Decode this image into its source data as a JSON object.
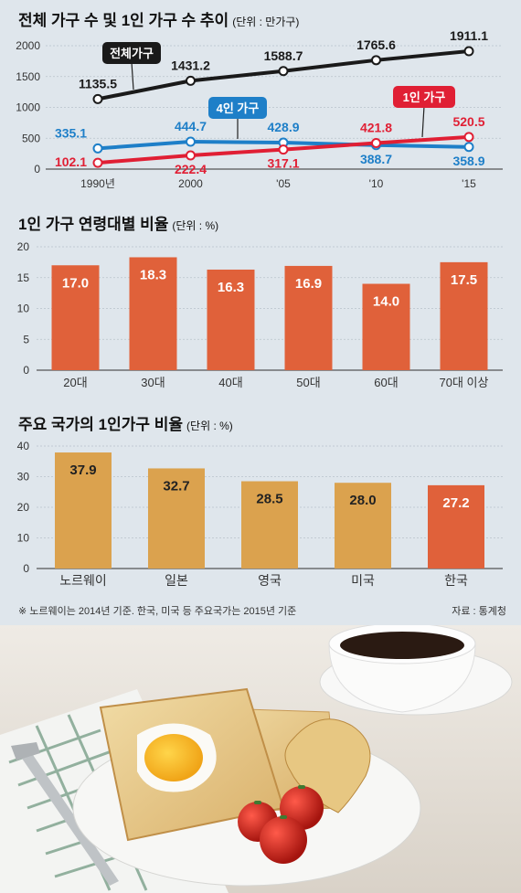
{
  "chart_data": [
    {
      "type": "line",
      "title": "전체 가구 수 및 1인 가구 수 추이",
      "unit": "(단위 : 만가구)",
      "categories": [
        "1990년",
        "2000",
        "'05",
        "'10",
        "'15"
      ],
      "yticks": [
        "0",
        "500",
        "1000",
        "1500",
        "2000"
      ],
      "ylim": [
        0,
        2000
      ],
      "series": [
        {
          "name": "전체가구",
          "values": [
            1135.5,
            1431.2,
            1588.7,
            1765.6,
            1911.1
          ],
          "labels": [
            "1135.5",
            "1431.2",
            "1588.7",
            "1765.6",
            "1911.1"
          ],
          "color": "#1a1a1a"
        },
        {
          "name": "4인 가구",
          "values": [
            335.1,
            444.7,
            428.9,
            388.7,
            358.9
          ],
          "labels": [
            "335.1",
            "444.7",
            "428.9",
            "388.7",
            "358.9"
          ],
          "color": "#1e7fc8"
        },
        {
          "name": "1인 가구",
          "values": [
            102.1,
            222.4,
            317.1,
            421.8,
            520.5
          ],
          "labels": [
            "102.1",
            "222.4",
            "317.1",
            "421.8",
            "520.5"
          ],
          "color": "#e01f34"
        }
      ]
    },
    {
      "type": "bar",
      "title": "1인 가구 연령대별 비율",
      "unit": "(단위 : %)",
      "categories": [
        "20대",
        "30대",
        "40대",
        "50대",
        "60대",
        "70대 이상"
      ],
      "values": [
        17.0,
        18.3,
        16.3,
        16.9,
        14.0,
        17.5
      ],
      "labels": [
        "17.0",
        "18.3",
        "16.3",
        "16.9",
        "14.0",
        "17.5"
      ],
      "yticks": [
        "0",
        "5",
        "10",
        "15",
        "20"
      ],
      "ylim": [
        0,
        20
      ],
      "bar_color": "#e0613a",
      "label_color": "#ffffff"
    },
    {
      "type": "bar",
      "title": "주요 국가의 1인가구 비율",
      "unit": "(단위 : %)",
      "categories": [
        "노르웨이",
        "일본",
        "영국",
        "미국",
        "한국"
      ],
      "values": [
        37.9,
        32.7,
        28.5,
        28.0,
        27.2
      ],
      "labels": [
        "37.9",
        "32.7",
        "28.5",
        "28.0",
        "27.2"
      ],
      "yticks": [
        "0",
        "10",
        "20",
        "30",
        "40"
      ],
      "ylim": [
        0,
        40
      ],
      "bar_colors": [
        "#dba24e",
        "#dba24e",
        "#dba24e",
        "#dba24e",
        "#e0613a"
      ],
      "label_colors": [
        "#222222",
        "#222222",
        "#222222",
        "#222222",
        "#ffffff"
      ]
    }
  ],
  "footnote": "※ 노르웨이는 2014년 기준. 한국, 미국 등 주요국가는 2015년 기준",
  "source": "자료 : 통계청",
  "photo": {
    "subject": "breakfast-photo-icon"
  }
}
